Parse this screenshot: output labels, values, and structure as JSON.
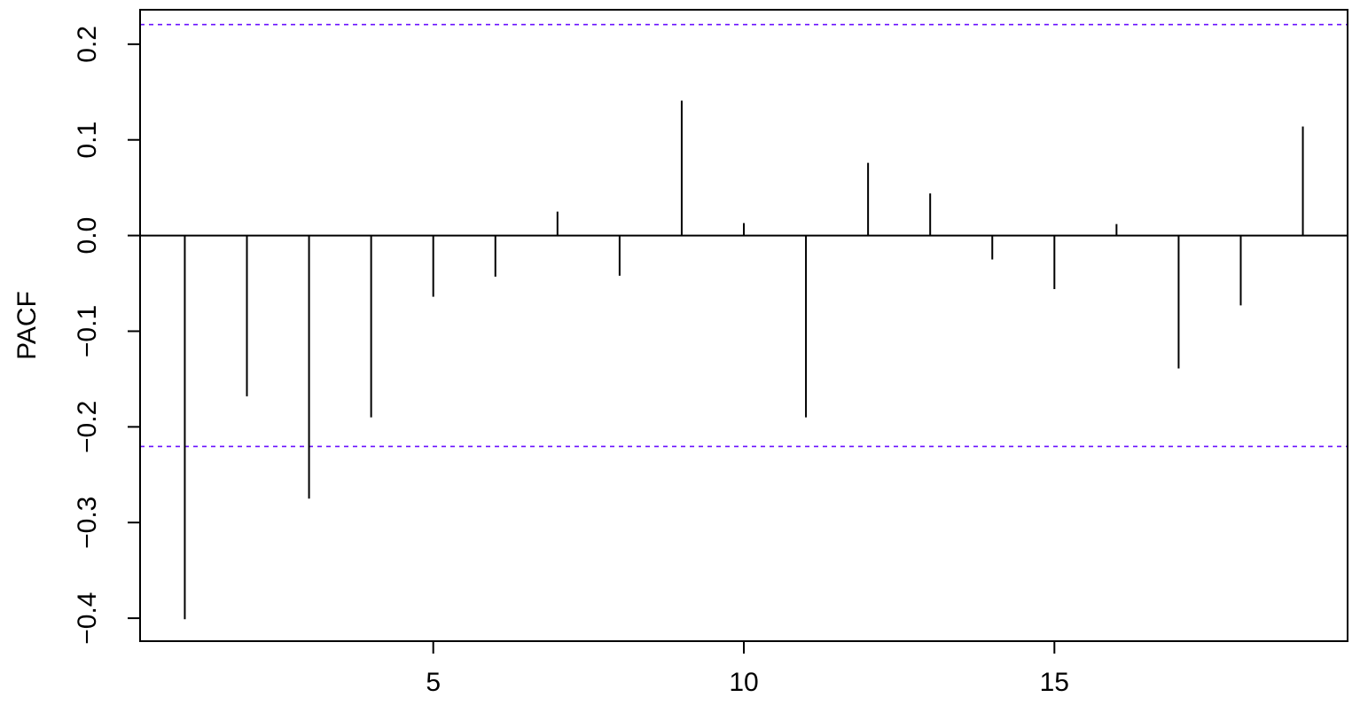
{
  "chart_data": {
    "type": "bar",
    "subtype": "pacf-spikes",
    "title": "",
    "xlabel": "",
    "ylabel": "PACF",
    "x": [
      1,
      2,
      3,
      4,
      5,
      6,
      7,
      8,
      9,
      10,
      11,
      12,
      13,
      14,
      15,
      16,
      17,
      18,
      19
    ],
    "values": [
      -0.401,
      -0.168,
      -0.275,
      -0.19,
      -0.064,
      -0.043,
      0.025,
      -0.042,
      0.141,
      0.013,
      -0.19,
      0.076,
      0.044,
      -0.025,
      -0.056,
      0.012,
      -0.139,
      -0.073,
      0.114
    ],
    "xlim": [
      0.28,
      19.72
    ],
    "ylim": [
      -0.424,
      0.236
    ],
    "x_ticks": [
      5,
      10,
      15
    ],
    "x_tick_labels": [
      "5",
      "10",
      "15"
    ],
    "y_ticks": [
      -0.4,
      -0.3,
      -0.2,
      -0.1,
      0.0,
      0.1,
      0.2
    ],
    "y_tick_labels": [
      "−0.4",
      "−0.3",
      "−0.2",
      "−0.1",
      "0.0",
      "0.1",
      "0.2"
    ],
    "confidence_bounds": [
      0.2205,
      -0.2205
    ],
    "colors": {
      "spike": "#000000",
      "bound": "#6a11ff",
      "zero_line": "#000000"
    },
    "grid": false,
    "legend": "none"
  }
}
